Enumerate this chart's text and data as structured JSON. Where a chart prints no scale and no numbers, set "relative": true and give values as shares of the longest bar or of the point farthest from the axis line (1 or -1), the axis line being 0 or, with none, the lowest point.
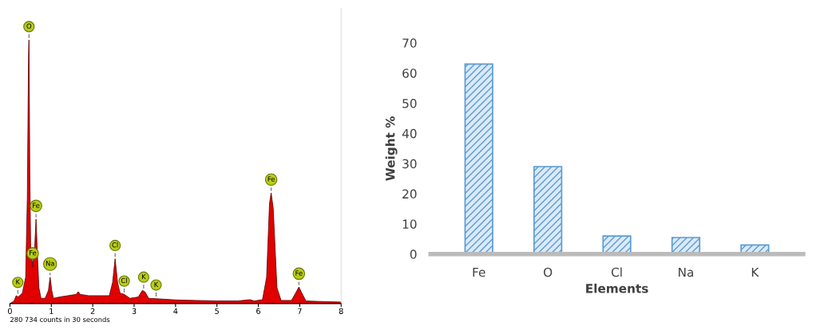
{
  "chart_data": [
    {
      "type": "area",
      "relative": true,
      "xlim": [
        0,
        8
      ],
      "xticks": [
        0,
        1,
        2,
        3,
        4,
        5,
        6,
        7,
        8
      ],
      "x": [
        0,
        0.1,
        0.15,
        0.2,
        0.3,
        0.38,
        0.42,
        0.45,
        0.46,
        0.48,
        0.5,
        0.55,
        0.6,
        0.63,
        0.66,
        0.7,
        0.75,
        0.85,
        0.93,
        0.97,
        1.01,
        1.05,
        1.2,
        1.4,
        1.6,
        1.65,
        1.7,
        1.9,
        2.2,
        2.4,
        2.48,
        2.54,
        2.6,
        2.66,
        2.76,
        2.9,
        3.1,
        3.2,
        3.26,
        3.35,
        3.6,
        4.0,
        4.5,
        5.0,
        5.5,
        5.8,
        5.9,
        6.1,
        6.2,
        6.27,
        6.31,
        6.36,
        6.45,
        6.55,
        6.8,
        6.9,
        6.98,
        7.05,
        7.15,
        7.5,
        8.0
      ],
      "series": [
        {
          "color": "#e00000",
          "values": [
            0,
            0.01,
            0.03,
            0.025,
            0.04,
            0.1,
            0.4,
            0.95,
            1.0,
            0.5,
            0.22,
            0.14,
            0.22,
            0.32,
            0.2,
            0.06,
            0.02,
            0.02,
            0.05,
            0.1,
            0.05,
            0.02,
            0.025,
            0.03,
            0.035,
            0.045,
            0.035,
            0.03,
            0.03,
            0.03,
            0.08,
            0.17,
            0.08,
            0.04,
            0.035,
            0.02,
            0.025,
            0.05,
            0.045,
            0.02,
            0.018,
            0.014,
            0.012,
            0.01,
            0.01,
            0.015,
            0.01,
            0.015,
            0.1,
            0.38,
            0.42,
            0.36,
            0.06,
            0.012,
            0.012,
            0.04,
            0.063,
            0.04,
            0.01,
            0.008,
            0.006
          ]
        }
      ],
      "annotations": [
        {
          "text": "O",
          "x": 0.46,
          "y": 1.0
        },
        {
          "text": "K",
          "x": 0.19,
          "y": 0.03
        },
        {
          "text": "Fe",
          "x": 0.63,
          "y": 0.32
        },
        {
          "text": "Fe",
          "x": 0.55,
          "y": 0.14
        },
        {
          "text": "Na",
          "x": 0.97,
          "y": 0.1
        },
        {
          "text": "Cl",
          "x": 2.54,
          "y": 0.17
        },
        {
          "text": "Cl",
          "x": 2.76,
          "y": 0.035
        },
        {
          "text": "K",
          "x": 3.23,
          "y": 0.05
        },
        {
          "text": "K",
          "x": 3.53,
          "y": 0.02
        },
        {
          "text": "Fe",
          "x": 6.31,
          "y": 0.42
        },
        {
          "text": "Fe",
          "x": 6.98,
          "y": 0.063
        },
        "280 734 counts in 30 seconds"
      ]
    },
    {
      "type": "bar",
      "categories": [
        "Fe",
        "O",
        "Cl",
        "Na",
        "K"
      ],
      "values": [
        63,
        29,
        6,
        5.5,
        3
      ],
      "color": "#5b9bd5",
      "ylim": [
        0,
        70
      ],
      "yticks": [
        0,
        10,
        20,
        30,
        40,
        50,
        60,
        70
      ],
      "xlabel": "Elements",
      "ylabel": "Weight %",
      "grid": false
    }
  ]
}
